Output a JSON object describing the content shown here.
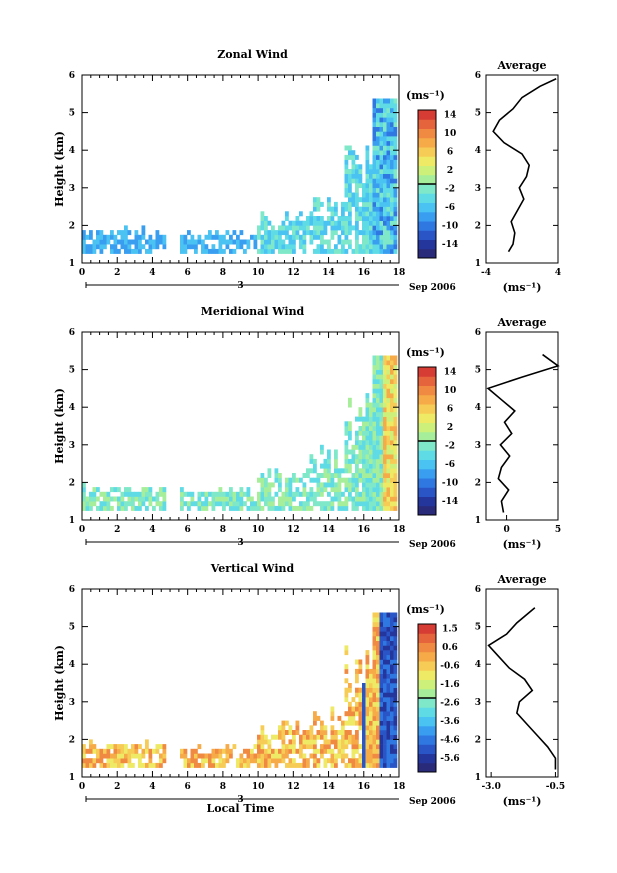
{
  "colors": {
    "scale": [
      "#2a2a7a",
      "#24369c",
      "#2a55c6",
      "#2f78e2",
      "#3a9ef0",
      "#4ac3f2",
      "#5fdbe6",
      "#7fe8c8",
      "#a6ee9a",
      "#cdf07a",
      "#eeea66",
      "#f7cc56",
      "#f6aa48",
      "#f08a42",
      "#e6643c",
      "#d63c34"
    ],
    "line": "#000000"
  },
  "chart_data": [
    {
      "type": "heatmap",
      "title": "Zonal Wind",
      "ylabel": "Height (km)",
      "xticks": [
        "0",
        "2",
        "4",
        "6",
        "8",
        "10",
        "12",
        "14",
        "16",
        "18"
      ],
      "yticks": [
        "1",
        "2",
        "3",
        "4",
        "5",
        "6"
      ],
      "xlim": [
        0,
        18
      ],
      "ylim": [
        1,
        6
      ],
      "date_tick": "3",
      "date_label": "Sep 2006",
      "colorbar": {
        "unit_label": "(ms⁻¹)",
        "tick_labels": [
          "14",
          "10",
          "6",
          "2",
          "-2",
          "-6",
          "-10",
          "-14"
        ],
        "range": [
          -16,
          16
        ]
      },
      "average": {
        "title": "Average",
        "xlabel": "(ms⁻¹)",
        "xticks": [
          "-4",
          "4"
        ],
        "xlim": [
          -4,
          4
        ],
        "yticks": [
          "1",
          "2",
          "3",
          "4",
          "5",
          "6"
        ],
        "heights": [
          1.3,
          1.5,
          1.8,
          2.1,
          2.4,
          2.7,
          3.0,
          3.3,
          3.6,
          3.9,
          4.2,
          4.5,
          4.8,
          5.1,
          5.4,
          5.7,
          5.9
        ],
        "values": [
          -1.5,
          -1.0,
          -0.8,
          -1.2,
          -0.5,
          0.2,
          -0.3,
          0.5,
          0.8,
          0.0,
          -2.0,
          -3.2,
          -2.5,
          -1.0,
          0.0,
          2.0,
          3.8
        ]
      }
    },
    {
      "type": "heatmap",
      "title": "Meridional Wind",
      "ylabel": "Height (km)",
      "xticks": [
        "0",
        "2",
        "4",
        "6",
        "8",
        "10",
        "12",
        "14",
        "16",
        "18"
      ],
      "yticks": [
        "1",
        "2",
        "3",
        "4",
        "5",
        "6"
      ],
      "xlim": [
        0,
        18
      ],
      "ylim": [
        1,
        6
      ],
      "date_tick": "3",
      "date_label": "Sep 2006",
      "colorbar": {
        "unit_label": "(ms⁻¹)",
        "tick_labels": [
          "14",
          "10",
          "6",
          "2",
          "-2",
          "-6",
          "-10",
          "-14"
        ],
        "range": [
          -16,
          16
        ]
      },
      "average": {
        "title": "Average",
        "xlabel": "(ms⁻¹)",
        "xticks": [
          "0",
          "5"
        ],
        "xlim": [
          -2,
          5
        ],
        "yticks": [
          "1",
          "2",
          "3",
          "4",
          "5",
          "6"
        ],
        "heights": [
          1.2,
          1.5,
          1.8,
          2.1,
          2.4,
          2.7,
          3.0,
          3.3,
          3.6,
          3.9,
          4.2,
          4.5,
          4.8,
          5.1,
          5.4
        ],
        "values": [
          -0.3,
          -0.5,
          0.2,
          -0.8,
          -0.5,
          0.3,
          -0.6,
          0.5,
          -0.2,
          0.8,
          -0.5,
          -1.8,
          1.5,
          5.0,
          3.5
        ]
      }
    },
    {
      "type": "heatmap",
      "title": "Vertical Wind",
      "ylabel": "Height (km)",
      "xlabel": "Local Time",
      "xticks": [
        "0",
        "2",
        "4",
        "6",
        "8",
        "10",
        "12",
        "14",
        "16",
        "18"
      ],
      "yticks": [
        "1",
        "2",
        "3",
        "4",
        "5",
        "6"
      ],
      "xlim": [
        0,
        18
      ],
      "ylim": [
        1,
        6
      ],
      "date_tick": "3",
      "date_label": "Sep 2006",
      "colorbar": {
        "unit_label": "(ms⁻¹)",
        "tick_labels": [
          "1.5",
          "0.6",
          "-0.6",
          "-1.6",
          "-2.6",
          "-3.6",
          "-4.6",
          "-5.6"
        ],
        "range": [
          -6,
          2
        ]
      },
      "average": {
        "title": "Average",
        "xlabel": "(ms⁻¹)",
        "xticks": [
          "-3.0",
          "-0.5"
        ],
        "xlim": [
          -3.2,
          -0.4
        ],
        "yticks": [
          "1",
          "2",
          "3",
          "4",
          "5",
          "6"
        ],
        "heights": [
          1.2,
          1.5,
          1.8,
          2.1,
          2.4,
          2.7,
          3.0,
          3.3,
          3.6,
          3.9,
          4.2,
          4.5,
          4.8,
          5.1,
          5.5
        ],
        "values": [
          -0.5,
          -0.5,
          -0.8,
          -1.2,
          -1.6,
          -2.0,
          -1.9,
          -1.4,
          -1.7,
          -2.3,
          -2.7,
          -3.1,
          -2.4,
          -2.0,
          -1.3
        ]
      }
    }
  ]
}
